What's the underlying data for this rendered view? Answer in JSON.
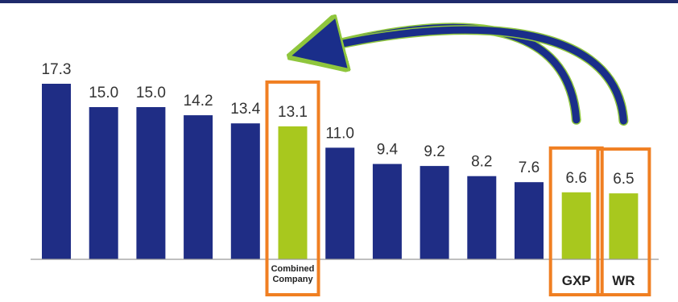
{
  "chart_data": {
    "type": "bar",
    "categories": [
      "",
      "",
      "",
      "",
      "",
      "Combined Company",
      "",
      "",
      "",
      "",
      "",
      "GXP",
      "WR"
    ],
    "values": [
      17.3,
      15.0,
      15.0,
      14.2,
      13.4,
      13.1,
      11.0,
      9.4,
      9.2,
      8.2,
      7.6,
      6.6,
      6.5
    ],
    "value_labels": [
      "17.3",
      "15.0",
      "15.0",
      "14.2",
      "13.4",
      "13.1",
      "11.0",
      "9.4",
      "9.2",
      "8.2",
      "7.6",
      "6.6",
      "6.5"
    ],
    "highlighted_categories": [
      "Combined Company",
      "GXP",
      "WR"
    ],
    "title": "",
    "xlabel": "",
    "ylabel": "",
    "ylim": [
      0,
      20
    ],
    "grid": false,
    "legend": "none",
    "colors": {
      "default_bar": "#1f2d85",
      "highlight_bar": "#a8c81e",
      "highlight_box": "#f07f22",
      "arrow": "#1a2e8a",
      "arrow_edge": "#8fc63d",
      "axis": "#999999",
      "top_rule": "#1f2a6b"
    }
  }
}
